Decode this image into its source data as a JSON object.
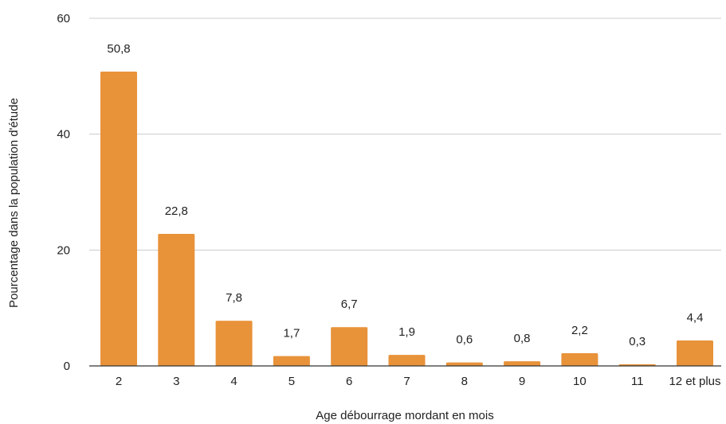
{
  "chart_data": {
    "type": "bar",
    "categories": [
      "2",
      "3",
      "4",
      "5",
      "6",
      "7",
      "8",
      "9",
      "10",
      "11",
      "12 et plus"
    ],
    "values": [
      50.8,
      22.8,
      7.8,
      1.7,
      6.7,
      1.9,
      0.6,
      0.8,
      2.2,
      0.3,
      4.4
    ],
    "value_labels": [
      "50,8",
      "22,8",
      "7,8",
      "1,7",
      "6,7",
      "1,9",
      "0,6",
      "0,8",
      "2,2",
      "0,3",
      "4,4"
    ],
    "xlabel": "Age débourrage mordant en mois",
    "ylabel": "Pourcentage dans la population d'étude",
    "ylim": [
      0,
      60
    ],
    "yticks": [
      "0",
      "20",
      "40",
      "60"
    ],
    "grid": true,
    "bar_color": "#E8923A",
    "grid_color": "#CCCCCC",
    "axis_color": "#333333"
  }
}
